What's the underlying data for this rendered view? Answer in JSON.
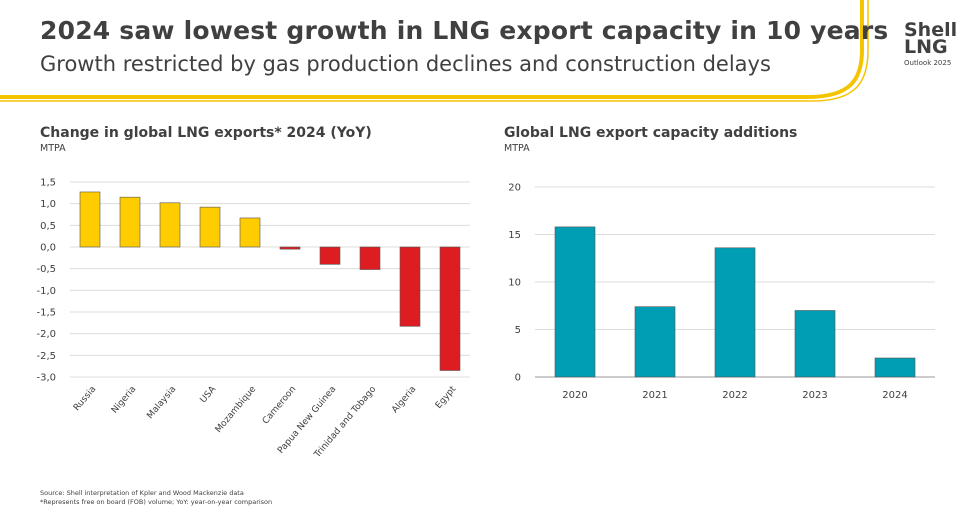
{
  "header": {
    "title": "2024 saw lowest growth in LNG export capacity in 10 years",
    "subtitle": "Growth restricted by gas production declines and construction delays",
    "brand_line1": "Shell",
    "brand_line2": "LNG",
    "brand_line3": "Outlook 2025",
    "accent_color": "#F5C400"
  },
  "chart_data": [
    {
      "type": "bar",
      "title": "Change in global LNG exports* 2024 (YoY)",
      "unit": "MTPA",
      "categories": [
        "Russia",
        "Nigeria",
        "Malaysia",
        "USA",
        "Mozambique",
        "Cameroon",
        "Papua New Guinea",
        "Trinidad and Tobago",
        "Algeria",
        "Egypt"
      ],
      "values": [
        1.27,
        1.15,
        1.02,
        0.92,
        0.67,
        -0.05,
        -0.4,
        -0.52,
        -1.83,
        -2.85
      ],
      "yticks": [
        "1,5",
        "1,0",
        "0,5",
        "0,0",
        "-0,5",
        "-1,0",
        "-1,5",
        "-2,0",
        "-2,5",
        "-3,0"
      ],
      "ylim": [
        -3.0,
        1.5
      ],
      "positive_color": "#FFCC00",
      "negative_color": "#DD1D21",
      "grid": true
    },
    {
      "type": "bar",
      "title": "Global LNG export capacity additions",
      "unit": "MTPA",
      "categories": [
        "2020",
        "2021",
        "2022",
        "2023",
        "2024"
      ],
      "values": [
        15.8,
        7.4,
        13.6,
        7.0,
        2.0
      ],
      "yticks": [
        "20",
        "15",
        "10",
        "5",
        "0"
      ],
      "ylim": [
        0,
        20
      ],
      "color": "#009EB4",
      "grid": true
    }
  ],
  "footer": {
    "line1": "Source: Shell interpretation of Kpler and Wood Mackenzie data",
    "line2": "*Represents free on board (FOB) volume; YoY: year-on-year comparison"
  }
}
